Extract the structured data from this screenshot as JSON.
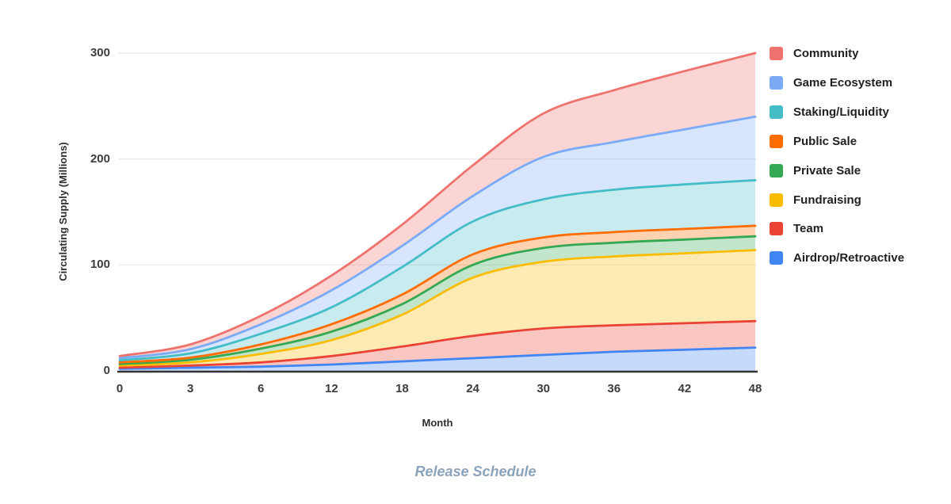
{
  "page": {
    "background": "#ffffff",
    "caption": "Release Schedule",
    "caption_color": "#8ba3bc"
  },
  "chart_data": {
    "type": "area",
    "stacked": true,
    "smooth": true,
    "title": "Release Schedule",
    "xlabel": "Month",
    "ylabel": "Circulating Supply (Millions)",
    "categories": [
      "0",
      "3",
      "6",
      "12",
      "18",
      "24",
      "30",
      "36",
      "42",
      "48"
    ],
    "y_ticks": [
      0,
      100,
      200,
      300
    ],
    "ylim": [
      0,
      300
    ],
    "grid": "horizontal",
    "gridline_color": "#e3e3e3",
    "baseline_color": "#333333",
    "area_opacity": 0.3,
    "legend_position": "right",
    "series": [
      {
        "name": "Airdrop/Retroactive",
        "color": "#4285F4",
        "values": [
          2,
          3,
          4,
          6,
          9,
          12,
          15,
          18,
          20,
          22
        ]
      },
      {
        "name": "Team",
        "color": "#EA4335",
        "values": [
          1,
          2,
          4,
          8,
          14,
          21,
          25,
          25,
          25,
          25
        ]
      },
      {
        "name": "Fundraising",
        "color": "#FBBC04",
        "values": [
          2,
          3,
          8,
          15,
          30,
          55,
          63,
          65,
          66,
          67
        ]
      },
      {
        "name": "Private Sale",
        "color": "#34A853",
        "values": [
          1.5,
          2.5,
          5,
          8,
          10,
          12,
          13,
          13,
          13,
          13
        ]
      },
      {
        "name": "Public Sale",
        "color": "#FF6D00",
        "values": [
          1.5,
          2,
          4,
          7,
          9,
          10,
          10,
          10,
          10,
          10
        ]
      },
      {
        "name": "Staking/Liquidity",
        "color": "#45BDC6",
        "values": [
          2,
          4,
          10,
          16,
          26,
          31,
          36,
          40,
          42,
          43
        ]
      },
      {
        "name": "Game Ecosystem",
        "color": "#7BAAF7",
        "values": [
          2,
          4,
          9,
          16,
          20,
          24,
          40,
          45,
          52,
          60
        ]
      },
      {
        "name": "Community",
        "color": "#EE736E",
        "values": [
          2,
          4.5,
          8,
          14,
          20,
          29,
          41,
          49,
          55,
          60
        ]
      }
    ],
    "legend_order_top_to_bottom": [
      "Community",
      "Game Ecosystem",
      "Staking/Liquidity",
      "Public Sale",
      "Private Sale",
      "Fundraising",
      "Team",
      "Airdrop/Retroactive"
    ],
    "totals_at_month_48": {
      "total": 300
    }
  }
}
